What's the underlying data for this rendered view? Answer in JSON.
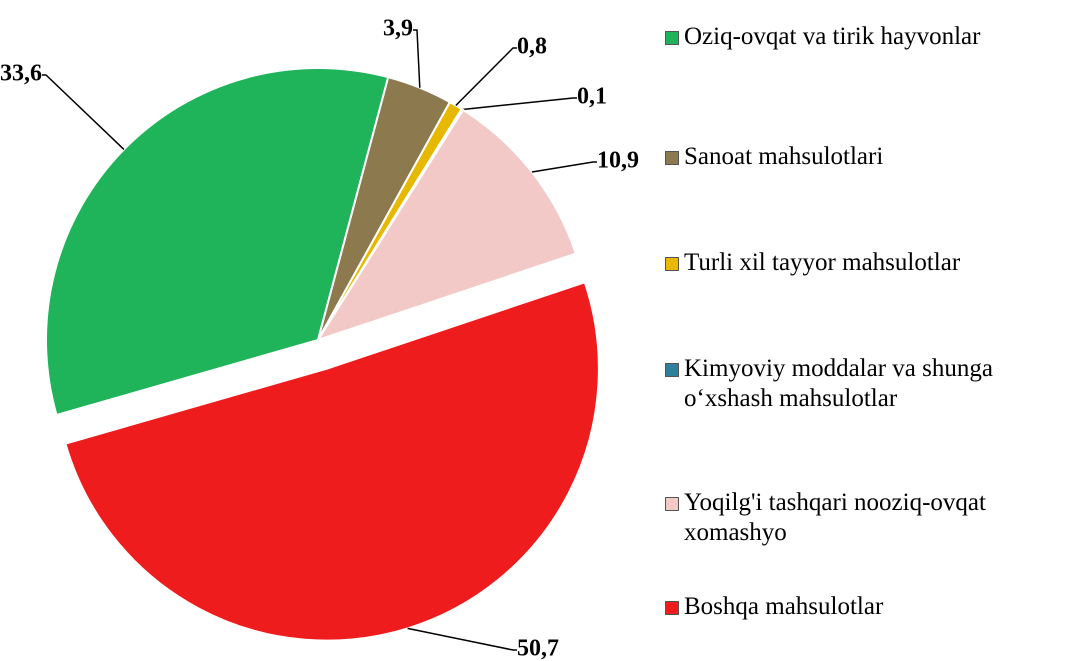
{
  "chart_data": {
    "type": "pie",
    "categories": [
      "Oziq-ovqat va tirik hayvonlar",
      "Sanoat mahsulotlari",
      "Turli xil tayyor mahsulotlar",
      "Kimyoviy moddalar va shunga o‘xshash mahsulotlar",
      "Yoqilg'i tashqari nooziq-ovqat xomashyo",
      "Boshqa mahsulotlar"
    ],
    "values": [
      33.6,
      3.9,
      0.8,
      0.1,
      10.9,
      50.7
    ],
    "value_labels": [
      "33,6",
      "3,9",
      "0,8",
      "0,1",
      "10,9",
      "50,7"
    ],
    "colors": [
      "#1fb35a",
      "#8c7a4e",
      "#e6b800",
      "#2e7f9a",
      "#f2c9c6",
      "#ee1c1c"
    ],
    "legend": "right"
  }
}
